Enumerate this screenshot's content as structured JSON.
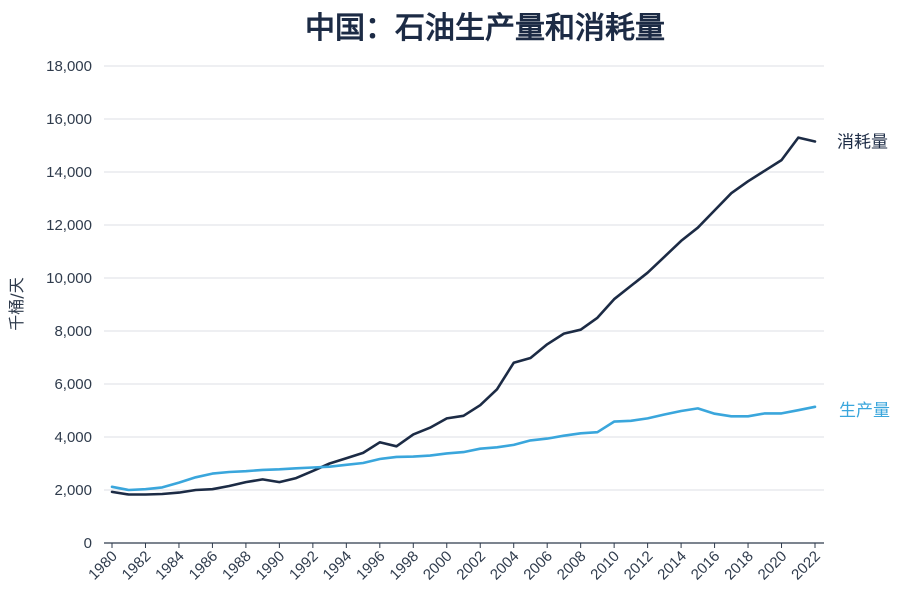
{
  "chart_data": {
    "type": "line",
    "title": "中国：石油生产量和消耗量",
    "ylabel": "千桶/天",
    "xlabel": "",
    "ylim": [
      0,
      18000
    ],
    "yticks": [
      0,
      2000,
      4000,
      6000,
      8000,
      10000,
      12000,
      14000,
      16000,
      18000
    ],
    "ytick_labels": [
      "0",
      "2,000",
      "4,000",
      "6,000",
      "8,000",
      "10,000",
      "12,000",
      "14,000",
      "16,000",
      "18,000"
    ],
    "xticks": [
      1980,
      1982,
      1984,
      1986,
      1988,
      1990,
      1992,
      1994,
      1996,
      1998,
      2000,
      2002,
      2004,
      2006,
      2008,
      2010,
      2012,
      2014,
      2016,
      2018,
      2020,
      2022
    ],
    "xtick_labels": [
      "1980",
      "1982",
      "1984",
      "1986",
      "1988",
      "1990",
      "1992",
      "1994",
      "1996",
      "1998",
      "2000",
      "2002",
      "2004",
      "2006",
      "2008",
      "2010",
      "2012",
      "2014",
      "2016",
      "2018",
      "2020",
      "2022"
    ],
    "grid": true,
    "x": [
      1980,
      1981,
      1982,
      1983,
      1984,
      1985,
      1986,
      1987,
      1988,
      1989,
      1990,
      1991,
      1992,
      1993,
      1994,
      1995,
      1996,
      1997,
      1998,
      1999,
      2000,
      2001,
      2002,
      2003,
      2004,
      2005,
      2006,
      2007,
      2008,
      2009,
      2010,
      2011,
      2012,
      2013,
      2014,
      2015,
      2016,
      2017,
      2018,
      2019,
      2020,
      2021,
      2022
    ],
    "series": [
      {
        "name": "消耗量",
        "color": "#1c2b45",
        "values": [
          1930,
          1830,
          1830,
          1850,
          1900,
          2000,
          2030,
          2150,
          2300,
          2400,
          2300,
          2450,
          2720,
          3000,
          3200,
          3400,
          3800,
          3650,
          4100,
          4350,
          4700,
          4800,
          5200,
          5800,
          6800,
          6980,
          7500,
          7900,
          8050,
          8500,
          9200,
          9700,
          10200,
          10800,
          11400,
          11900,
          12550,
          13200,
          13650,
          14050,
          14450,
          15300,
          15150
        ]
      },
      {
        "name": "生产量",
        "color": "#3aa6dc",
        "values": [
          2120,
          2000,
          2030,
          2100,
          2280,
          2480,
          2620,
          2680,
          2710,
          2760,
          2780,
          2820,
          2850,
          2880,
          2950,
          3020,
          3170,
          3250,
          3260,
          3300,
          3380,
          3430,
          3560,
          3610,
          3700,
          3870,
          3940,
          4050,
          4140,
          4180,
          4580,
          4610,
          4700,
          4850,
          4980,
          5080,
          4880,
          4780,
          4780,
          4890,
          4890,
          5010,
          5140
        ]
      }
    ]
  }
}
